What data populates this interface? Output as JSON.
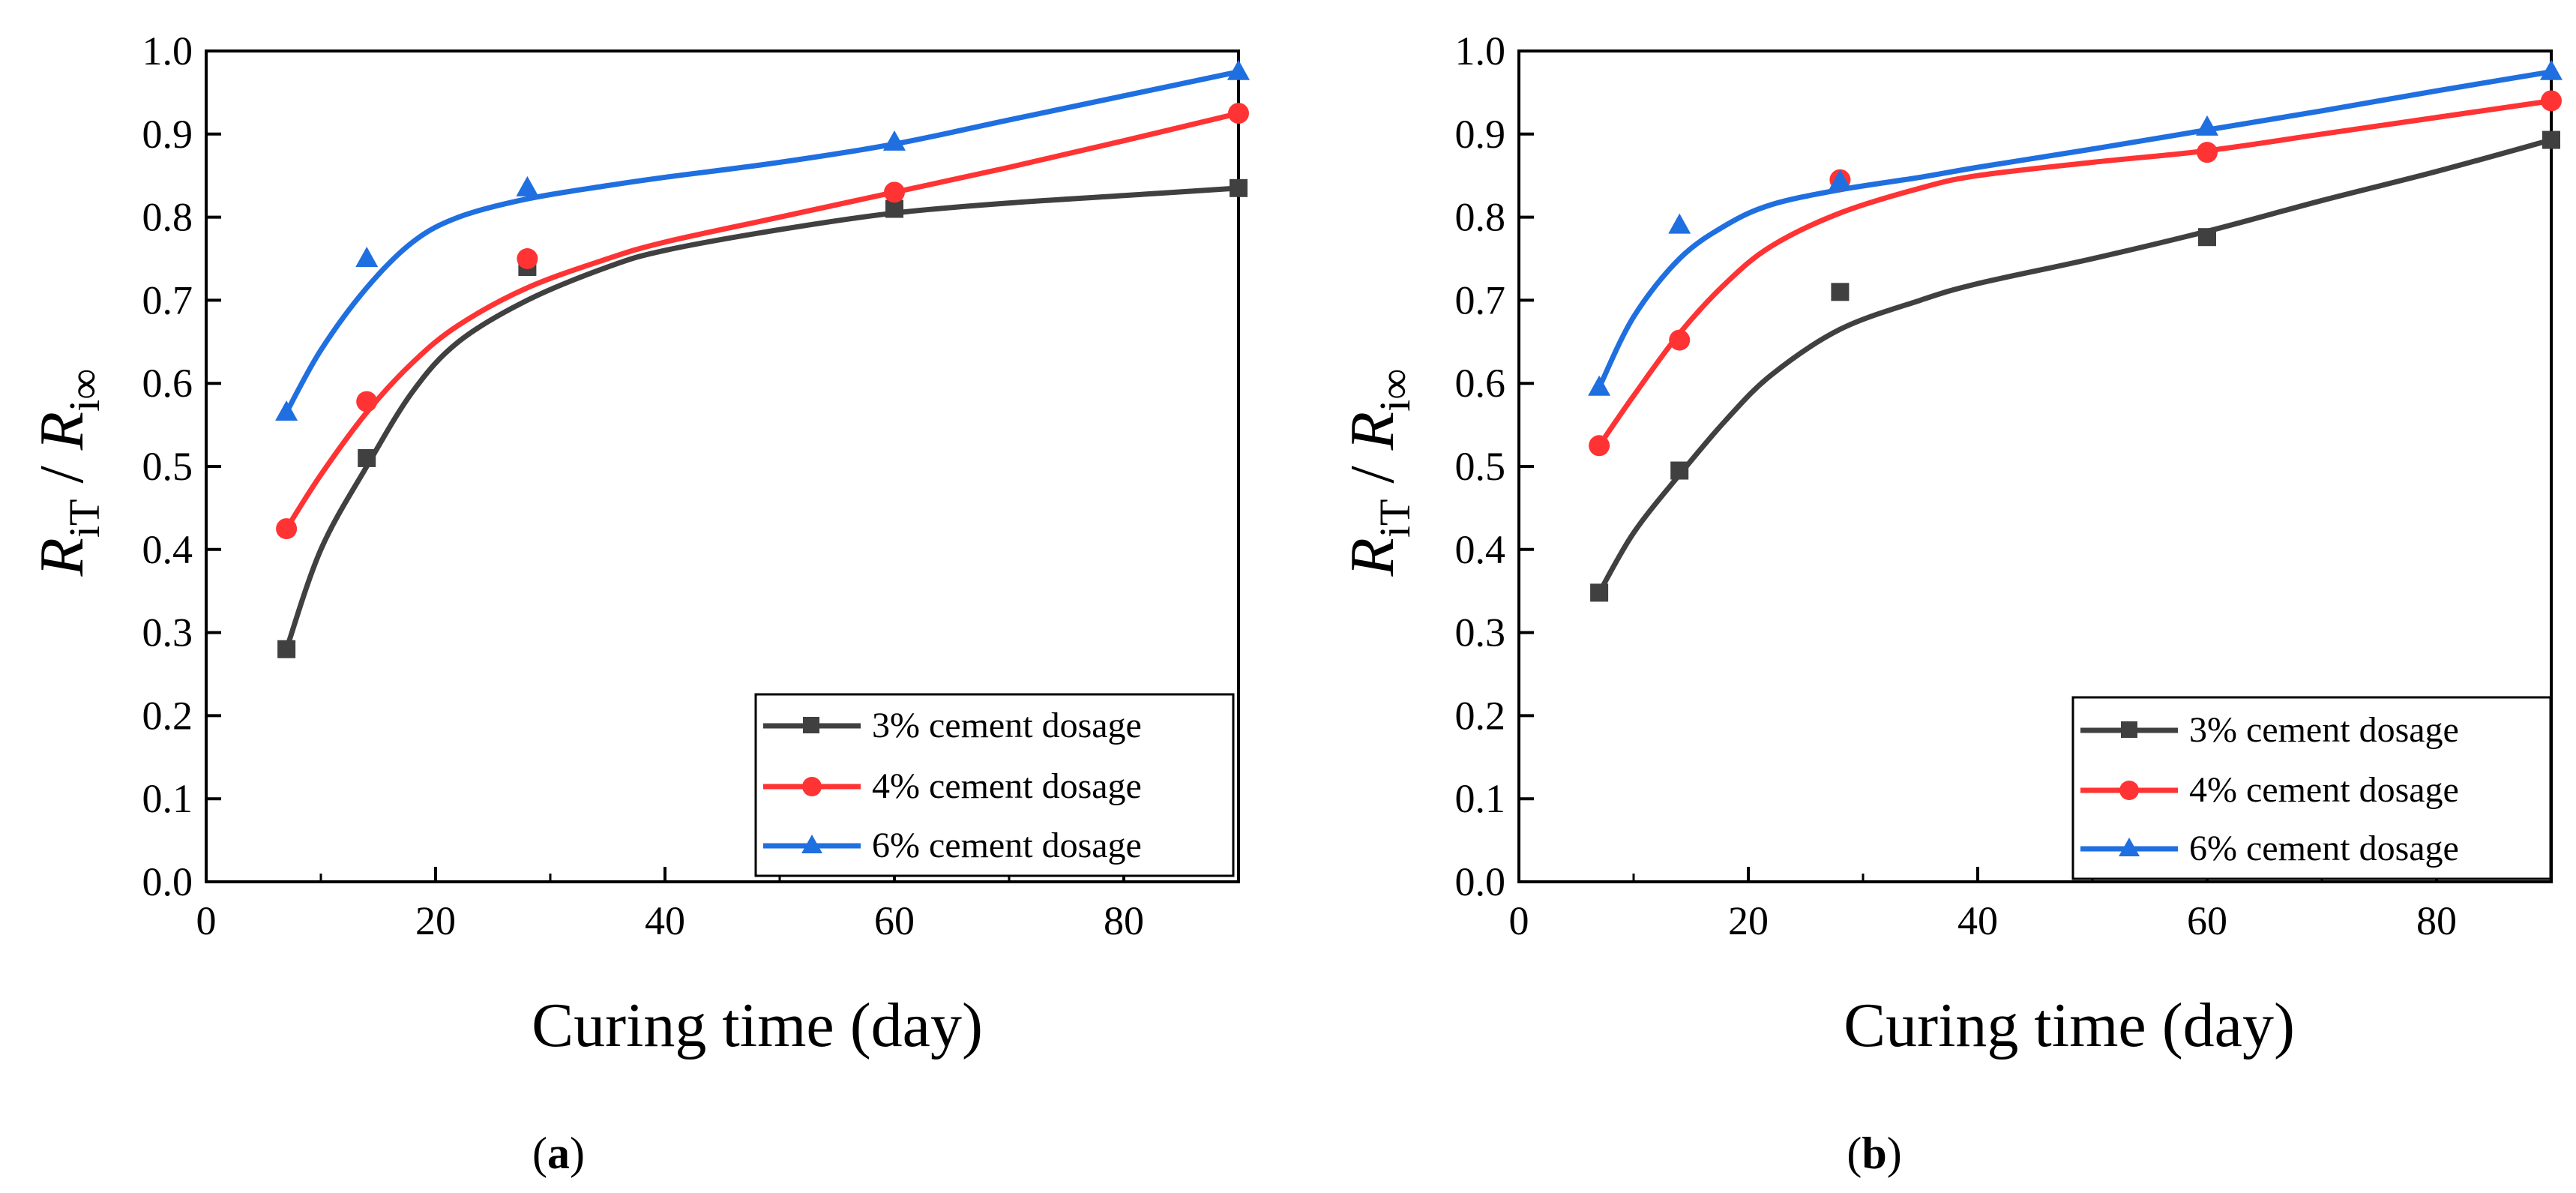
{
  "chart_data": [
    {
      "type": "scatter",
      "panel_label": "(a)",
      "panel_letter": "a",
      "xlabel": "Curing time (day)",
      "ylabel": {
        "r1": "R",
        "sub1": "iT",
        "slash": " / ",
        "r2": "R",
        "sub2": "i∞"
      },
      "xlim": [
        0,
        90
      ],
      "ylim": [
        0.0,
        1.0
      ],
      "xticks": [
        "0",
        "20",
        "40",
        "60",
        "80"
      ],
      "yticks": [
        "0.0",
        "0.1",
        "0.2",
        "0.3",
        "0.4",
        "0.5",
        "0.6",
        "0.7",
        "0.8",
        "0.9",
        "1.0"
      ],
      "legend_position": "bottom-right",
      "series": [
        {
          "name": "3% cement dosage",
          "color": "#404040",
          "marker": "square",
          "x": [
            7,
            14,
            28,
            60,
            90
          ],
          "values": [
            0.28,
            0.51,
            0.74,
            0.81,
            0.835
          ],
          "fit": [
            [
              7,
              0.28
            ],
            [
              10,
              0.4
            ],
            [
              14,
              0.5
            ],
            [
              18,
              0.59
            ],
            [
              22,
              0.65
            ],
            [
              28,
              0.7
            ],
            [
              35,
              0.74
            ],
            [
              40,
              0.76
            ],
            [
              50,
              0.785
            ],
            [
              60,
              0.805
            ],
            [
              70,
              0.817
            ],
            [
              80,
              0.826
            ],
            [
              90,
              0.835
            ]
          ]
        },
        {
          "name": "4% cement dosage",
          "color": "#ff3333",
          "marker": "circle",
          "x": [
            7,
            14,
            28,
            60,
            90
          ],
          "values": [
            0.425,
            0.578,
            0.75,
            0.83,
            0.925
          ],
          "fit": [
            [
              7,
              0.425
            ],
            [
              10,
              0.49
            ],
            [
              14,
              0.565
            ],
            [
              18,
              0.625
            ],
            [
              22,
              0.67
            ],
            [
              28,
              0.715
            ],
            [
              35,
              0.75
            ],
            [
              40,
              0.77
            ],
            [
              50,
              0.8
            ],
            [
              60,
              0.83
            ],
            [
              70,
              0.86
            ],
            [
              80,
              0.892
            ],
            [
              90,
              0.925
            ]
          ]
        },
        {
          "name": "6% cement dosage",
          "color": "#1f6fe0",
          "marker": "triangle",
          "x": [
            7,
            14,
            28,
            60,
            90
          ],
          "values": [
            0.565,
            0.75,
            0.835,
            0.89,
            0.975
          ],
          "fit": [
            [
              7,
              0.565
            ],
            [
              10,
              0.64
            ],
            [
              14,
              0.715
            ],
            [
              18,
              0.77
            ],
            [
              22,
              0.8
            ],
            [
              28,
              0.822
            ],
            [
              35,
              0.838
            ],
            [
              40,
              0.848
            ],
            [
              50,
              0.866
            ],
            [
              60,
              0.888
            ],
            [
              70,
              0.917
            ],
            [
              80,
              0.946
            ],
            [
              90,
              0.975
            ]
          ]
        }
      ]
    },
    {
      "type": "scatter",
      "panel_label": "(b)",
      "panel_letter": "b",
      "xlabel": "Curing time (day)",
      "ylabel": {
        "r1": "R",
        "sub1": "iT",
        "slash": " / ",
        "r2": "R",
        "sub2": "i∞"
      },
      "xlim": [
        0,
        90
      ],
      "ylim": [
        0.0,
        1.0
      ],
      "xticks": [
        "0",
        "20",
        "40",
        "60",
        "80"
      ],
      "yticks": [
        "0.0",
        "0.1",
        "0.2",
        "0.3",
        "0.4",
        "0.5",
        "0.6",
        "0.7",
        "0.8",
        "0.9",
        "1.0"
      ],
      "legend_position": "bottom-right",
      "series": [
        {
          "name": "3% cement dosage",
          "color": "#404040",
          "marker": "square",
          "x": [
            7,
            14,
            28,
            60,
            90
          ],
          "values": [
            0.348,
            0.495,
            0.71,
            0.776,
            0.893
          ],
          "fit": [
            [
              7,
              0.348
            ],
            [
              10,
              0.42
            ],
            [
              14,
              0.49
            ],
            [
              18,
              0.555
            ],
            [
              22,
              0.61
            ],
            [
              28,
              0.665
            ],
            [
              35,
              0.7
            ],
            [
              40,
              0.72
            ],
            [
              50,
              0.75
            ],
            [
              60,
              0.783
            ],
            [
              70,
              0.82
            ],
            [
              80,
              0.855
            ],
            [
              90,
              0.893
            ]
          ]
        },
        {
          "name": "4% cement dosage",
          "color": "#ff3333",
          "marker": "circle",
          "x": [
            7,
            14,
            28,
            60,
            90
          ],
          "values": [
            0.525,
            0.652,
            0.845,
            0.878,
            0.94
          ],
          "fit": [
            [
              7,
              0.525
            ],
            [
              10,
              0.585
            ],
            [
              14,
              0.66
            ],
            [
              18,
              0.72
            ],
            [
              22,
              0.765
            ],
            [
              28,
              0.805
            ],
            [
              35,
              0.835
            ],
            [
              40,
              0.85
            ],
            [
              50,
              0.866
            ],
            [
              60,
              0.88
            ],
            [
              70,
              0.9
            ],
            [
              80,
              0.92
            ],
            [
              90,
              0.94
            ]
          ]
        },
        {
          "name": "6% cement dosage",
          "color": "#1f6fe0",
          "marker": "triangle",
          "x": [
            7,
            14,
            28,
            60,
            90
          ],
          "values": [
            0.595,
            0.79,
            0.843,
            0.908,
            0.975
          ],
          "fit": [
            [
              7,
              0.595
            ],
            [
              10,
              0.68
            ],
            [
              14,
              0.75
            ],
            [
              18,
              0.79
            ],
            [
              22,
              0.815
            ],
            [
              28,
              0.833
            ],
            [
              35,
              0.848
            ],
            [
              40,
              0.86
            ],
            [
              50,
              0.882
            ],
            [
              60,
              0.905
            ],
            [
              70,
              0.928
            ],
            [
              80,
              0.952
            ],
            [
              90,
              0.975
            ]
          ]
        }
      ]
    }
  ]
}
